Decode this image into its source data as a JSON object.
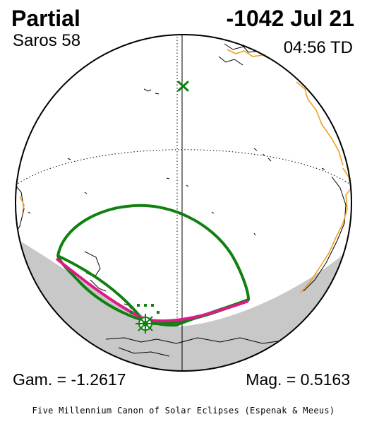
{
  "header": {
    "eclipse_type": "Partial",
    "saros": "Saros  58",
    "date": "-1042 Jul 21",
    "time": "04:56 TD"
  },
  "footer": {
    "gamma": "Gam. = -1.2617",
    "magnitude": "Mag. = 0.5163",
    "credit": "Five Millennium Canon of Solar Eclipses (Espenak & Meeus)"
  },
  "colors": {
    "coastline": "#000000",
    "coastline_orange": "#f0a020",
    "penumbra_limit": "#108010",
    "max_eclipse_line": "#e0188c",
    "night_shade": "#c8c8c8",
    "greatest_eclipse_marker": "#108010"
  },
  "map": {
    "projection": "orthographic globe",
    "markers": [
      "greatest-eclipse-star",
      "subsolar-x"
    ]
  }
}
